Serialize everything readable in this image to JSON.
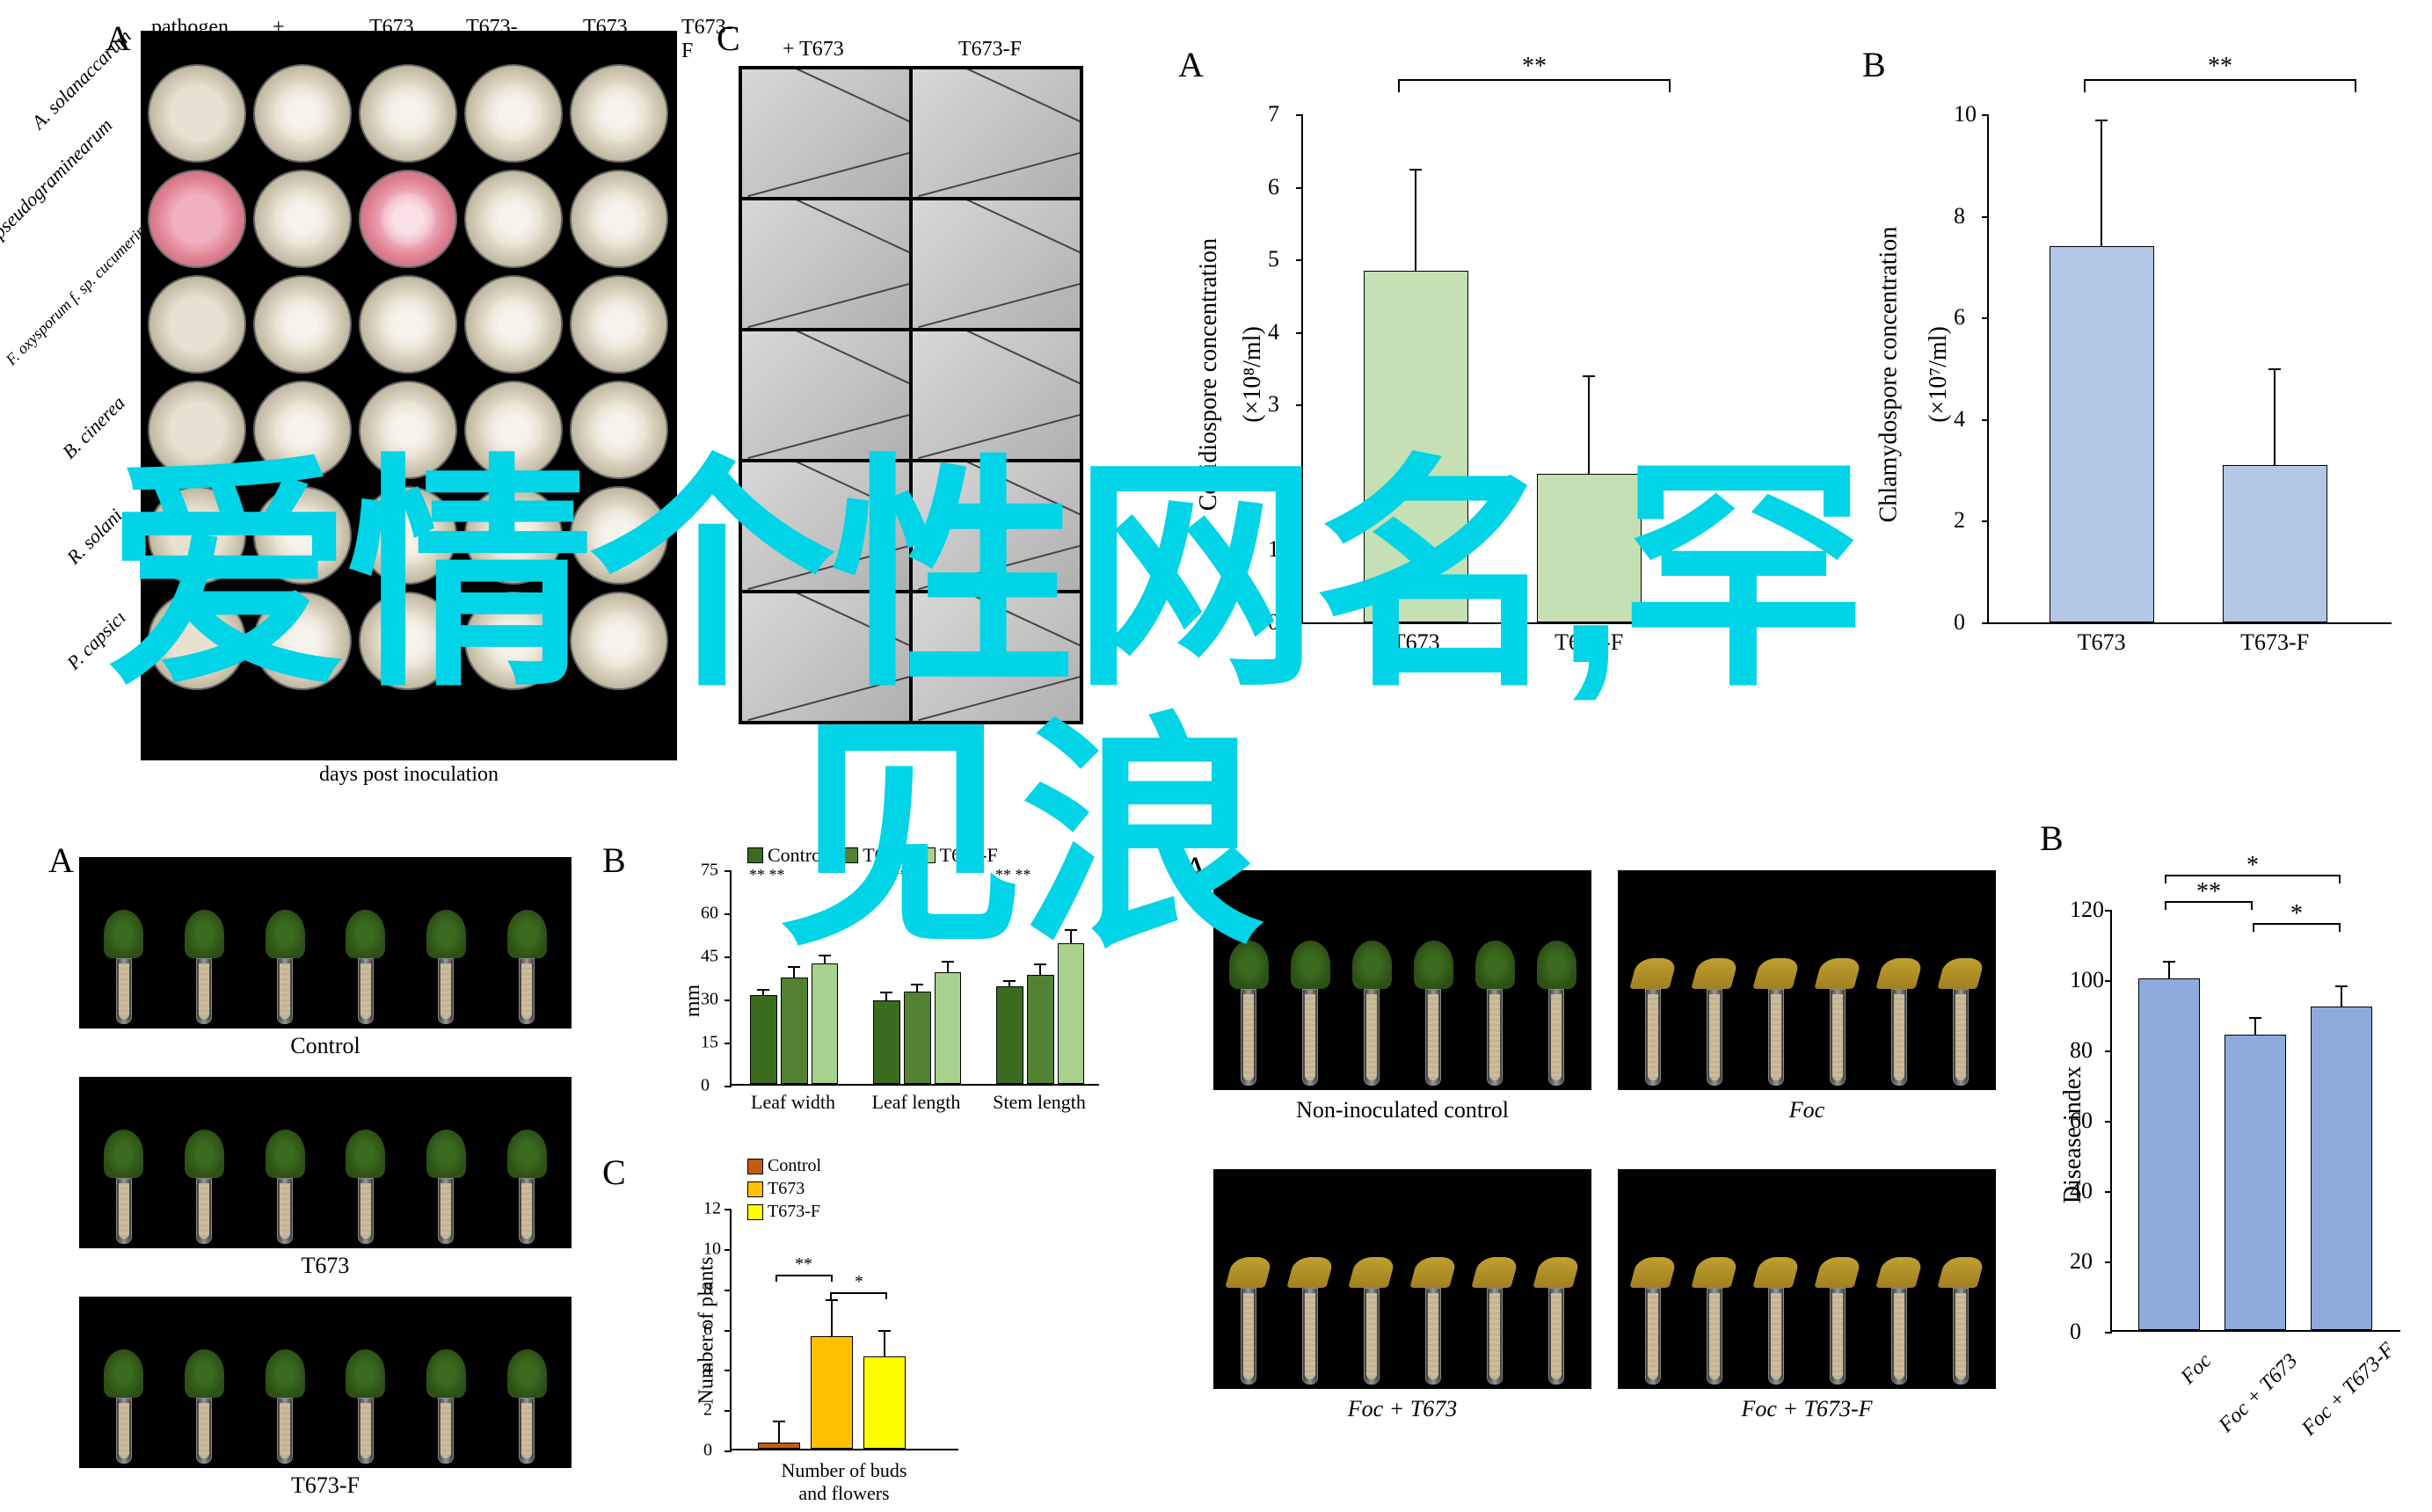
{
  "overlay": {
    "line1": "爱情个性网名,罕",
    "line2": "见浪",
    "color": "#00d4e6",
    "fontsize": 280
  },
  "top_left_petri": {
    "panel_label": "A",
    "col_headers": [
      "pathogen",
      "+",
      "T673",
      "T673-F",
      "T673",
      "T673-F"
    ],
    "row_labels": [
      "A. solanaccarum",
      "F. pseudograminearum",
      "F. oxysporum f. sp. cucumerinum",
      "B. cinerea",
      "R. solani",
      "P. capsicı"
    ],
    "bottom_label": "days post inoculation",
    "grid_rows": 6,
    "grid_cols": 5
  },
  "top_center_micro": {
    "panel_label": "C",
    "col_headers": [
      "+ T673",
      "T673-F"
    ],
    "grid_rows": 5,
    "grid_cols": 2
  },
  "chart_A_top": {
    "panel_label": "A",
    "type": "bar",
    "ylabel_line1": "Conidiospore concentration",
    "ylabel_line2": "(×10⁸/ml)",
    "categories": [
      "T673",
      "T673-F"
    ],
    "values": [
      4.85,
      2.05
    ],
    "errors": [
      1.4,
      1.35
    ],
    "bar_color": "#c5e0b4",
    "ylim": [
      0,
      7
    ],
    "ytick_step": 1,
    "yticks": [
      0,
      1,
      2,
      3,
      4,
      5,
      6,
      7
    ],
    "sig_label": "**",
    "label_fontsize": 28
  },
  "chart_B_top": {
    "panel_label": "B",
    "type": "bar",
    "ylabel_line1": "Chlamydospore concentration",
    "ylabel_line2": "(×10⁷/ml)",
    "categories": [
      "T673",
      "T673-F"
    ],
    "values": [
      7.4,
      3.1
    ],
    "errors": [
      2.5,
      1.9
    ],
    "bar_color": "#b4c7e7",
    "ylim": [
      0,
      10
    ],
    "ytick_step": 2,
    "yticks": [
      0,
      2,
      4,
      6,
      8,
      10
    ],
    "sig_label": "**",
    "label_fontsize": 28
  },
  "bottom_left_plants": {
    "panel_label": "A",
    "rows": [
      {
        "caption": "Control",
        "n_plants": 6
      },
      {
        "caption": "T673",
        "n_plants": 6
      },
      {
        "caption": "T673-F",
        "n_plants": 6
      }
    ]
  },
  "chart_B_bottom": {
    "panel_label": "B",
    "type": "grouped_bar",
    "ylabel": "mm",
    "categories": [
      "Leaf width",
      "Leaf length",
      "Stem length"
    ],
    "series": [
      {
        "name": "Control",
        "color": "#3b6b1f",
        "values": [
          31,
          29,
          34
        ]
      },
      {
        "name": "T673",
        "color": "#548235",
        "values": [
          37,
          32,
          38
        ]
      },
      {
        "name": "T673-F",
        "color": "#a9d18e",
        "values": [
          42,
          39,
          49
        ]
      }
    ],
    "errors": [
      [
        2,
        3,
        2
      ],
      [
        4,
        3,
        4
      ],
      [
        3,
        4,
        5
      ]
    ],
    "ylim": [
      0,
      75
    ],
    "yticks": [
      0,
      15,
      30,
      45,
      60,
      75
    ],
    "sig_groups": [
      [
        [
          "**",
          "**"
        ],
        [
          "**"
        ]
      ],
      [
        [
          "**",
          "**"
        ],
        [
          "**"
        ]
      ],
      [
        [
          "**",
          "**"
        ],
        [
          "**"
        ]
      ]
    ],
    "label_fontsize": 22
  },
  "chart_C_bottom": {
    "panel_label": "C",
    "type": "bar",
    "ylabel": "Number of plants",
    "xlabel": "Number of buds and flowers",
    "series": [
      {
        "name": "Control",
        "color": "#c55a11",
        "value": 0.3,
        "error": 1.1
      },
      {
        "name": "T673",
        "color": "#ffc000",
        "value": 5.6,
        "error": 1.8
      },
      {
        "name": "T673-F",
        "color": "#ffff00",
        "value": 4.6,
        "error": 1.3
      }
    ],
    "ylim": [
      0,
      12
    ],
    "yticks": [
      0,
      2,
      4,
      6,
      8,
      10,
      12
    ],
    "sig_labels": [
      "**",
      "*"
    ],
    "label_fontsize": 22
  },
  "bottom_right_plants": {
    "panel_label": "A",
    "panels": [
      {
        "caption": "Non-inoculated control",
        "healthy": true,
        "n": 6
      },
      {
        "caption": "Foc",
        "healthy": false,
        "italic": true,
        "n": 6
      },
      {
        "caption": "Foc + T673",
        "healthy": false,
        "italic": true,
        "n": 6
      },
      {
        "caption": "Foc + T673-F",
        "healthy": false,
        "italic": true,
        "n": 6
      }
    ]
  },
  "chart_B_disease": {
    "panel_label": "B",
    "type": "bar",
    "ylabel": "Disease index",
    "categories": [
      "Foc",
      "Foc + T673",
      "Foc + T673-F"
    ],
    "values": [
      100,
      84,
      92
    ],
    "errors": [
      5,
      5,
      6
    ],
    "bar_color": "#8faadc",
    "ylim": [
      0,
      120
    ],
    "yticks": [
      0,
      20,
      40,
      60,
      80,
      100,
      120
    ],
    "sig_brackets": [
      {
        "from": 0,
        "to": 1,
        "label": "**"
      },
      {
        "from": 1,
        "to": 2,
        "label": "*"
      },
      {
        "from": 0,
        "to": 2,
        "label": "*"
      }
    ],
    "label_fontsize": 24
  }
}
